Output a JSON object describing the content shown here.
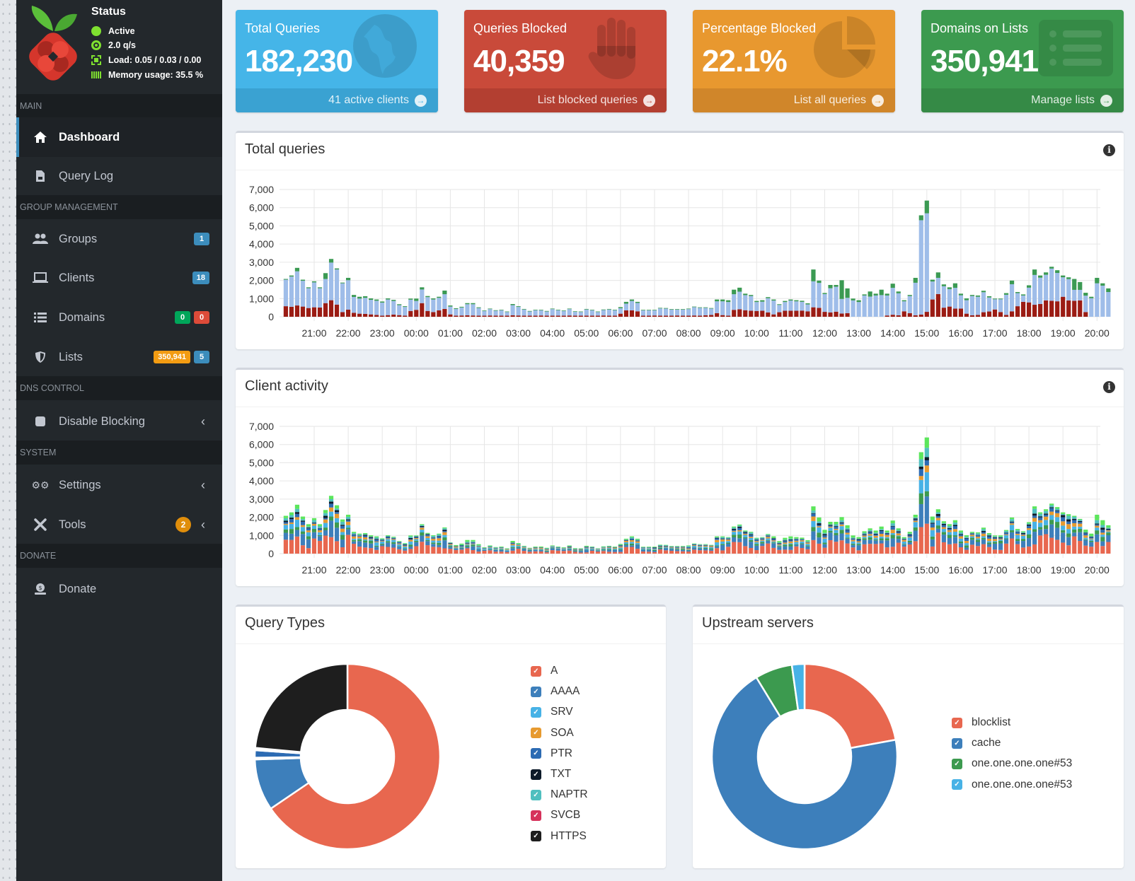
{
  "status": {
    "title": "Status",
    "lines": [
      {
        "icon": "circle-icon",
        "text": "Active"
      },
      {
        "icon": "gauge-icon",
        "text": "2.0 q/s"
      },
      {
        "icon": "chip-icon",
        "text": "Load: 0.05 / 0.03 / 0.00"
      },
      {
        "icon": "memory-icon",
        "text": "Memory usage: 35.5 %"
      }
    ]
  },
  "sidebar": {
    "sections": {
      "main": "MAIN",
      "group": "GROUP MANAGEMENT",
      "dns": "DNS CONTROL",
      "system": "SYSTEM",
      "donate": "DONATE"
    },
    "items": {
      "dashboard": "Dashboard",
      "querylog": "Query Log",
      "groups": {
        "label": "Groups",
        "badge": "1"
      },
      "clients": {
        "label": "Clients",
        "badge": "18"
      },
      "domains": {
        "label": "Domains",
        "badge_allow": "0",
        "badge_deny": "0"
      },
      "lists": {
        "label": "Lists",
        "badge_domains": "350,941",
        "badge_lists": "5"
      },
      "disable": "Disable Blocking",
      "settings": "Settings",
      "tools": {
        "label": "Tools",
        "badge": "2"
      },
      "donate": "Donate"
    }
  },
  "cards": [
    {
      "title": "Total Queries",
      "value": "182,230",
      "link": "41 active clients",
      "color": "#45b5e8",
      "foot": "#3aa2d2",
      "icon": "globe-icon"
    },
    {
      "title": "Queries Blocked",
      "value": "40,359",
      "link": "List blocked queries",
      "color": "#c94a3a",
      "foot": "#b33f31",
      "icon": "hand-icon"
    },
    {
      "title": "Percentage Blocked",
      "value": "22.1%",
      "link": "List all queries",
      "color": "#e8982f",
      "foot": "#d0862a",
      "icon": "pie-icon"
    },
    {
      "title": "Domains on Lists",
      "value": "350,941",
      "link": "Manage lists",
      "color": "#3c9a4f",
      "foot": "#358a46",
      "icon": "list-icon"
    }
  ],
  "chart_data": [
    {
      "type": "bar",
      "title": "Total queries",
      "stacked": true,
      "interval_minutes": 10,
      "start_time": "20:10",
      "x_ticks": [
        "21:00",
        "22:00",
        "23:00",
        "00:00",
        "01:00",
        "02:00",
        "03:00",
        "04:00",
        "05:00",
        "06:00",
        "07:00",
        "08:00",
        "09:00",
        "10:00",
        "11:00",
        "12:00",
        "13:00",
        "14:00",
        "15:00",
        "16:00",
        "17:00",
        "18:00",
        "19:00",
        "20:00"
      ],
      "y_ticks": [
        "0",
        "1,000",
        "2,000",
        "3,000",
        "4,000",
        "5,000",
        "6,000",
        "7,000"
      ],
      "ylim": [
        0,
        7000
      ],
      "colors": {
        "blocked": "#9b1c14",
        "forwarded": "#9fbde9",
        "cached": "#3b9a53"
      },
      "totals": [
        2080,
        2270,
        2690,
        2040,
        1620,
        1950,
        1620,
        2400,
        3180,
        2660,
        1880,
        2140,
        1200,
        1100,
        1130,
        1010,
        950,
        840,
        1010,
        930,
        690,
        580,
        1000,
        1000,
        1620,
        1140,
        1010,
        1100,
        1440,
        620,
        470,
        550,
        750,
        750,
        520,
        350,
        450,
        360,
        390,
        290,
        700,
        580,
        430,
        320,
        390,
        390,
        320,
        450,
        390,
        350,
        450,
        300,
        290,
        430,
        390,
        290,
        400,
        430,
        390,
        530,
        820,
        950,
        820,
        380,
        380,
        380,
        490,
        480,
        420,
        420,
        420,
        450,
        560,
        520,
        520,
        480,
        950,
        950,
        910,
        1490,
        1600,
        1270,
        1200,
        870,
        910,
        1080,
        950,
        690,
        870,
        950,
        910,
        880,
        740,
        2600,
        1990,
        1310,
        1750,
        1750,
        2010,
        1560,
        1000,
        910,
        1230,
        1390,
        1270,
        1490,
        1270,
        1820,
        1390,
        910,
        1200,
        2140,
        5580,
        6390,
        2040,
        2440,
        1780,
        1620,
        1840,
        1270,
        1010,
        1200,
        1170,
        1430,
        1130,
        1000,
        1000,
        1300,
        1990,
        1360,
        1230,
        1730,
        2600,
        2270,
        2440,
        2750,
        2560,
        2270,
        2170,
        2080,
        1910,
        1320,
        1100,
        2140,
        1840,
        1560
      ],
      "blocked": [
        580,
        550,
        620,
        560,
        480,
        520,
        510,
        750,
        910,
        670,
        260,
        390,
        220,
        170,
        160,
        130,
        100,
        60,
        90,
        120,
        90,
        60,
        320,
        380,
        750,
        320,
        260,
        350,
        430,
        130,
        60,
        70,
        80,
        70,
        60,
        60,
        70,
        60,
        60,
        60,
        80,
        70,
        60,
        60,
        60,
        70,
        60,
        60,
        60,
        60,
        70,
        60,
        60,
        60,
        60,
        60,
        70,
        60,
        60,
        170,
        350,
        350,
        300,
        60,
        60,
        70,
        60,
        60,
        60,
        70,
        60,
        60,
        70,
        60,
        80,
        100,
        200,
        90,
        60,
        380,
        410,
        360,
        330,
        320,
        330,
        240,
        130,
        250,
        330,
        330,
        330,
        340,
        300,
        520,
        490,
        270,
        240,
        280,
        180,
        200,
        0,
        0,
        0,
        0,
        0,
        0,
        70,
        110,
        80,
        300,
        200,
        80,
        120,
        270,
        950,
        1250,
        500,
        560,
        450,
        450,
        170,
        80,
        100,
        250,
        290,
        400,
        260,
        100,
        300,
        580,
        820,
        790,
        660,
        700,
        900,
        880,
        850,
        1100,
        900,
        880,
        900,
        260,
        0,
        0,
        0,
        0
      ],
      "cached": [
        40,
        60,
        190,
        60,
        50,
        60,
        50,
        320,
        200,
        60,
        40,
        130,
        110,
        100,
        90,
        80,
        70,
        60,
        60,
        60,
        50,
        40,
        60,
        130,
        120,
        60,
        60,
        60,
        200,
        60,
        40,
        40,
        60,
        60,
        40,
        30,
        30,
        30,
        30,
        30,
        60,
        40,
        30,
        30,
        30,
        30,
        30,
        30,
        30,
        30,
        30,
        30,
        30,
        30,
        30,
        30,
        30,
        30,
        30,
        60,
        100,
        80,
        60,
        30,
        30,
        30,
        30,
        30,
        30,
        30,
        30,
        30,
        30,
        30,
        30,
        30,
        100,
        100,
        100,
        250,
        220,
        80,
        60,
        60,
        80,
        60,
        60,
        40,
        60,
        60,
        60,
        60,
        60,
        650,
        130,
        60,
        180,
        100,
        1030,
        520,
        100,
        100,
        60,
        280,
        100,
        300,
        100,
        230,
        100,
        60,
        60,
        270,
        270,
        700,
        100,
        300,
        100,
        100,
        250,
        90,
        100,
        60,
        70,
        80,
        70,
        40,
        40,
        90,
        200,
        60,
        60,
        130,
        300,
        120,
        130,
        100,
        150,
        100,
        100,
        600,
        430,
        160,
        80,
        300,
        130,
        200
      ]
    },
    {
      "type": "bar",
      "title": "Client activity",
      "stacked": true,
      "interval_minutes": 10,
      "start_time": "20:10",
      "x_ticks": [
        "21:00",
        "22:00",
        "23:00",
        "00:00",
        "01:00",
        "02:00",
        "03:00",
        "04:00",
        "05:00",
        "06:00",
        "07:00",
        "08:00",
        "09:00",
        "10:00",
        "11:00",
        "12:00",
        "13:00",
        "14:00",
        "15:00",
        "16:00",
        "17:00",
        "18:00",
        "19:00",
        "20:00"
      ],
      "y_ticks": [
        "0",
        "1,000",
        "2,000",
        "3,000",
        "4,000",
        "5,000",
        "6,000",
        "7,000"
      ],
      "ylim": [
        0,
        7000
      ],
      "series_colors": [
        "#e8674f",
        "#3d7fbb",
        "#3c9a4f",
        "#47b2e6",
        "#e79a2f",
        "#2c6bb3",
        "#0d1b2a",
        "#50bfbf",
        "#5ce65c"
      ],
      "series_shares": [
        0.34,
        0.2,
        0.08,
        0.1,
        0.07,
        0.06,
        0.03,
        0.05,
        0.07
      ],
      "totals": [
        2080,
        2270,
        2690,
        2040,
        1620,
        1950,
        1620,
        2400,
        3180,
        2660,
        1880,
        2140,
        1200,
        1100,
        1130,
        1010,
        950,
        840,
        1010,
        930,
        690,
        580,
        1000,
        1000,
        1620,
        1140,
        1010,
        1100,
        1440,
        620,
        470,
        550,
        750,
        750,
        520,
        350,
        450,
        360,
        390,
        290,
        700,
        580,
        430,
        320,
        390,
        390,
        320,
        450,
        390,
        350,
        450,
        300,
        290,
        430,
        390,
        290,
        400,
        430,
        390,
        530,
        820,
        950,
        820,
        380,
        380,
        380,
        490,
        480,
        420,
        420,
        420,
        450,
        560,
        520,
        520,
        480,
        950,
        950,
        910,
        1490,
        1600,
        1270,
        1200,
        870,
        910,
        1080,
        950,
        690,
        870,
        950,
        910,
        880,
        740,
        2600,
        1990,
        1310,
        1750,
        1750,
        2010,
        1560,
        1000,
        910,
        1230,
        1390,
        1270,
        1490,
        1270,
        1820,
        1390,
        910,
        1200,
        2140,
        5580,
        6390,
        2040,
        2440,
        1780,
        1620,
        1840,
        1270,
        1010,
        1200,
        1170,
        1430,
        1130,
        1000,
        1000,
        1300,
        1990,
        1360,
        1230,
        1730,
        2600,
        2270,
        2440,
        2750,
        2560,
        2270,
        2170,
        2080,
        1910,
        1320,
        1100,
        2140,
        1840,
        1560
      ]
    },
    {
      "type": "pie",
      "title": "Query Types",
      "donut": true,
      "labels": [
        "A",
        "AAAA",
        "SRV",
        "SOA",
        "PTR",
        "TXT",
        "NAPTR",
        "SVCB",
        "HTTPS"
      ],
      "values": [
        65.5,
        9.0,
        0.2,
        0.1,
        1.3,
        0.1,
        0.1,
        0.2,
        23.5
      ],
      "colors": [
        "#e8674f",
        "#3d7fbb",
        "#47b2e6",
        "#e79a2f",
        "#2c6bb3",
        "#0d1b2a",
        "#50bfbf",
        "#d6325b",
        "#1e1e1e"
      ],
      "legend": "right"
    },
    {
      "type": "pie",
      "title": "Upstream servers",
      "donut": true,
      "labels": [
        "blocklist",
        "cache",
        "one.one.one.one#53",
        "one.one.one.one#53"
      ],
      "values": [
        22.1,
        69.2,
        6.5,
        2.2
      ],
      "colors": [
        "#e8674f",
        "#3d7fbb",
        "#3c9a4f",
        "#47b2e6"
      ],
      "legend": "right"
    }
  ]
}
